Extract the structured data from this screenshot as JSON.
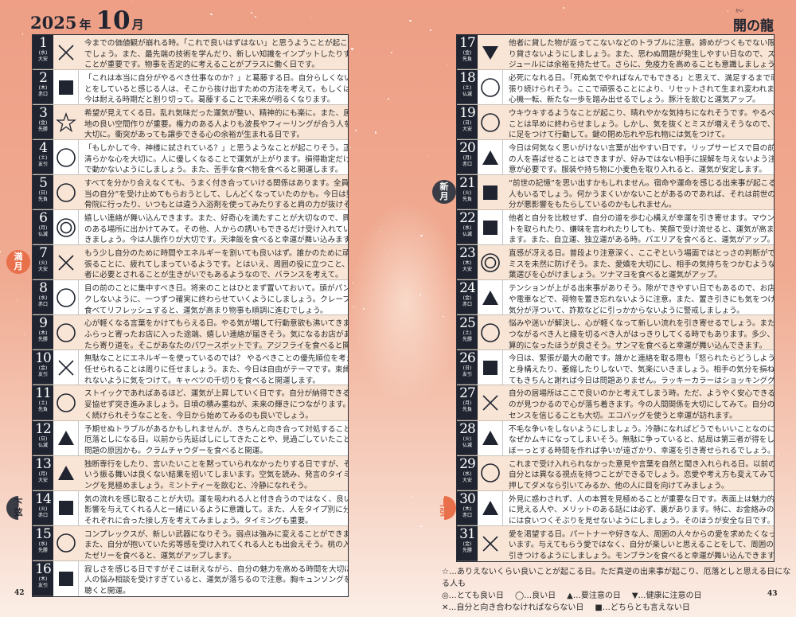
{
  "header": {
    "year": "2025",
    "year_kanji": "年",
    "month": "10",
    "month_kanji": "月",
    "dragon": "開の龍",
    "dragon_ruby": "かい"
  },
  "colors": {
    "day_column": "#1f2430",
    "odd_row": "#f8e5d5",
    "even_row": "#ffffff",
    "full_moon": "#e8704a"
  },
  "moons": [
    {
      "day": 7,
      "label": "満月",
      "icon": "full-moon-icon"
    },
    {
      "day": 14,
      "label": "下弦",
      "icon": "last-quarter-moon-icon"
    },
    {
      "day": 21,
      "label": "新月",
      "icon": "new-moon-icon"
    },
    {
      "day": 30,
      "label": "上弦",
      "icon": "first-quarter-moon-icon"
    }
  ],
  "days": [
    {
      "n": "1",
      "w": "(水)",
      "r": "大安",
      "s": "cross",
      "lines": [
        "今までの価値観が崩れる時。「これで良いはずはない」と思うようことが起こる",
        "でしょう。また、最先端の技術を学んだり、新しい知識をインプットしたりする",
        "ことが重要です。物事を否定的に考えることがプラスに働く日です。"
      ]
    },
    {
      "n": "2",
      "w": "(木)",
      "r": "赤口",
      "s": "square",
      "lines": [
        "「これは本当に自分がやるべき仕事なのか？」と葛藤する日。自分らしくないこ",
        "とをしていると感じる人は、そこから抜け出すための方法を考えて。もしくは、",
        "今は耐える時期だと割り切って。葛藤することで未来が明るくなります。"
      ]
    },
    {
      "n": "3",
      "w": "(金)",
      "r": "先勝",
      "s": "star",
      "lines": [
        "希望が見えてくる日。乱れ気味だった運気が整い、精神的にも楽に。また、居心",
        "地の良い空間作りが重要。権力のある人よりも波長やフィーリングが合う人を",
        "大切に。衝突があっても譲歩できる心の余裕が生まれる日です。"
      ]
    },
    {
      "n": "4",
      "w": "(土)",
      "r": "友引",
      "s": "circle",
      "lines": [
        "「もしかして今、神様に試されている？」と思うようなことが起こりそう。正しい、",
        "清らかな心を大切に。人に優しくなることで運気が上がります。損得勘定だけ",
        "で動かないようにしましょう。また、苦手な食べ物を食べると開運します。"
      ]
    },
    {
      "n": "5",
      "w": "(日)",
      "r": "先負",
      "s": "circle",
      "lines": [
        "すべてを分かり合えなくても、うまく付き合っていける関係はあります。全員に“本",
        "当の自分”を受け止めてもらおうとして、しんどくなっていたのかも。今日は整",
        "骨院に行ったり、いつもとは違う入浴剤を使ってみたりすると肩の力が抜けそう。"
      ]
    },
    {
      "n": "6",
      "w": "(月)",
      "r": "仏滅",
      "s": "double",
      "lines": [
        "嬉しい連絡が舞い込んできます。また、好奇心を満たすことが大切なので、興味",
        "のある場所に出かけてみて。その他、人からの誘いもできるだけ受け入れてい",
        "きましょう。今は人脈作りが大切です。天津飯を食べると幸運が舞い込みます。"
      ]
    },
    {
      "n": "7",
      "w": "(火)",
      "r": "大安",
      "s": "cross",
      "lines": [
        "もう少し自分のために時間やエネルギーを割いても良いはず。誰かのために頑",
        "張ることに、疲れてしまっているようです。とはいえ、周囲の役に立つこと、他",
        "者に必要とされることが生きがいでもあるようなので、バランスを考えて。"
      ]
    },
    {
      "n": "8",
      "w": "(水)",
      "r": "赤口",
      "s": "circle",
      "lines": [
        "目の前のことに集中すべき日。将来のことはひとまず置いておいて。頭がパン",
        "クしないように、一つずつ確実に終わらせていくようにしましょう。クレープを",
        "食べてリフレッシュすると、運気が高まり物事も順調に進むでしょう。"
      ]
    },
    {
      "n": "9",
      "w": "(木)",
      "r": "先勝",
      "s": "circle",
      "lines": [
        "心が軽くなる言葉をかけてもらえる日。やる気が増して行動意欲も沸いてきます。",
        "ふらっと寄ったお店に入った途端、嬉しい連絡が届きそう。気になるお店があっ",
        "たら寄り道を。そこがあなたのパワースポットです。アジフライを食べると開運。"
      ]
    },
    {
      "n": "10",
      "w": "(金)",
      "r": "友引",
      "s": "cross",
      "lines": [
        "無駄なことにエネルギーを使っているのでは？ やるべきことの優先順位を考えて、",
        "任せられることは周りに任せましょう。また、今日は自由がテーマです。束縛さ",
        "れないように気をつけて。キャベツの千切りを食べると開運します。"
      ]
    },
    {
      "n": "11",
      "w": "(土)",
      "r": "先負",
      "s": "circle",
      "lines": [
        "ストイックであればあるほど、運気が上昇していく日です。自分が納得できるまで、",
        "妥協せず突き進みましょう。日頃の積み重ねが、未来の輝きにつながります。長",
        "く続けられそうなことを、今日から始めてみるのも良いでしょう。"
      ]
    },
    {
      "n": "12",
      "w": "(日)",
      "r": "仏滅",
      "s": "triangle",
      "lines": [
        "予期せぬトラブルがあるかもしれませんが、きちんと向き合って対処することで、",
        "厄落としになる日。以前から先延ばしにしてきたことや、見過ごしていたことが",
        "問題の原因かも。クラムチャウダーを食べると開運。"
      ]
    },
    {
      "n": "13",
      "w": "(月)",
      "r": "大安",
      "s": "triangle",
      "lines": [
        "独断専行をしたり、言いたいことを黙っていられなかったりする日ですが、そう",
        "いう振る舞いは良くない結果を招いてしまいます。空気を読み、発言のタイミ",
        "ングを見極めましょう。ミントティーを飲むと、冷静になれそう。"
      ]
    },
    {
      "n": "14",
      "w": "(火)",
      "r": "赤口",
      "s": "square",
      "lines": [
        "気の流れを感じ取ることが大切。運を吸われる人と付き合うのではなく、良い",
        "影響を与えてくれる人と一緒にいるように意識して。また、人をタイプ別に分類し、",
        "それぞれに合った接し方を考えてみましょう。タイミングも重要。"
      ]
    },
    {
      "n": "15",
      "w": "(水)",
      "r": "先勝",
      "s": "circle",
      "lines": [
        "コンプレックスが、新しい武器になりそう。弱点は強みに変えることができます。",
        "また、自分が抱いていた劣等感を受け入れてくれる人とも出会えそう。桃の入っ",
        "たゼリーを食べると、運気がアップします。"
      ]
    },
    {
      "n": "16",
      "w": "(木)",
      "r": "友引",
      "s": "square",
      "lines": [
        "寂しさを感じる日ですがそこは耐えながら、自分の魅力を高める時間を大切に。",
        "人の悩み相談を受けすぎていると、運気が落ちるので注意。胸キュンソングを",
        "聴くと開運。"
      ]
    },
    {
      "n": "17",
      "w": "(金)",
      "r": "先負",
      "s": "down-triangle",
      "lines": [
        "他者に貸した物が返ってこないなどのトラブルに注意。諦めがつくもでない限",
        "り貸さないようにしましょう。また、思わぬ問題が発生しやすい日なので、スケ",
        "ジュールには余裕を持たせて。さらに、免疫力を高めることも意識しましょう。"
      ]
    },
    {
      "n": "18",
      "w": "(土)",
      "r": "仏滅",
      "s": "circle",
      "lines": [
        "必死になれる日。「死ぬ気でやればなんでもできる」と思えて、満足するまで頑",
        "張り続けられそう。ここで頑張ることにより、リセットされて生まれ変われます。",
        "心機一転、新たな一歩を踏み出せるでしょう。豚汁を飲むと運気アップ。"
      ]
    },
    {
      "n": "19",
      "w": "(日)",
      "r": "大安",
      "s": "circle",
      "lines": [
        "ウキウキするようなことが起こり、晴れやかな気持ちになれそうです。やるべき",
        "ことは早めに終わらせましょう。しかし、気を抜くとミスが増えそうなので、地",
        "に足をつけて行動して。鍵の閉め忘れや忘れ物には気をつけて。"
      ]
    },
    {
      "n": "20",
      "w": "(月)",
      "r": "赤口",
      "s": "triangle",
      "lines": [
        "今日は何気なく思いがけない言葉が出やすい日です。リップサービスで目の前",
        "の人を喜ばせることはできますが、好みではない相手に誤解を与えないよう注",
        "意が必要です。服装や持ち物に小麦色を取り入れると、運気が安定します。"
      ]
    },
    {
      "n": "21",
      "w": "(火)",
      "r": "先負",
      "s": "square",
      "lines": [
        "“前世の記憶”を思い出すかもしれません。宿命や運命を感じる出来事が起こる",
        "人もいるでしょう。何かうまくいかないことがあるのであれば、それは前世の自",
        "分が悪影響をもたらしているのかもしれません。"
      ]
    },
    {
      "n": "22",
      "w": "(水)",
      "r": "仏滅",
      "s": "square",
      "lines": [
        "他者と自分を比較せず、自分の道を歩む心構えが幸運を引き寄せます。マウン",
        "トを取られたり、嫌味を言われたりしても、笑顔で受け流せると、運気が高まり",
        "ます。また、自立運、独立運がある時。パエリアを食べると、運気がアップ。"
      ]
    },
    {
      "n": "23",
      "w": "(木)",
      "r": "大安",
      "s": "double",
      "lines": [
        "直感が冴える日。普段より注意深く、ここぞという場面ではとっさの判断ができ、",
        "ミスを未然に防げそう。また、愛嬌を大切にし、相手の気持ちをつかむような言",
        "葉選びを心がけましょう。ツナマヨを食べると運気がアップ。"
      ]
    },
    {
      "n": "24",
      "w": "(金)",
      "r": "赤口",
      "s": "triangle",
      "lines": [
        "テンションが上がる出来事がありそう。隙ができやすい日でもあるので、お店",
        "や電車などで、荷物を置き忘れないように注意。また、置き引きにも気をつけて。",
        "気分が浮ついて、詐欺などに引っかからないように警戒しましょう。"
      ]
    },
    {
      "n": "25",
      "w": "(土)",
      "r": "先勝",
      "s": "circle",
      "lines": [
        "悩みや迷いが解決し、心が軽くなって新しい流れを引き寄せるでしょう。また、",
        "つながるべき人と縁を切るべき人がはっきりしてくる時でもあります。多少、打",
        "算的になったほうが良さそう。サンマを食べると幸運が舞い込んできます。"
      ]
    },
    {
      "n": "26",
      "w": "(日)",
      "r": "友引",
      "s": "square",
      "lines": [
        "今日は、緊張が最大の敵です。誰かと連絡を取る際も「怒られたらどうしよう」など",
        "と身構えたり、萎縮したりしないで、気楽にいきましょう。相手の気分を損ねてしまっ",
        "てもきちんと謝れば今日は問題ありません。ラッキーカラーはショッキンググリーン。"
      ]
    },
    {
      "n": "27",
      "w": "(月)",
      "r": "先負",
      "s": "cross",
      "lines": [
        "自分の居場所はここで良いのかと考えてしまう時。ただ、ようやく安心できるも",
        "のが見つかるので心が落ち着きます。今の人間関係を大切にしてみて。自分の",
        "センスを信じることも大切。エコバッグを使うと幸運が訪れます。"
      ]
    },
    {
      "n": "28",
      "w": "(火)",
      "r": "仏滅",
      "s": "triangle",
      "lines": [
        "不毛な争いをしないようにしましょう。冷静になればどうでもいいことなのに、",
        "なぜかムキになってしまいそう。無駄に争っていると、結局は第三者が得をします。",
        "ぼーっとする時間を作れば争いが遠ざかり、幸運を引き寄せられるでしょう。"
      ]
    },
    {
      "n": "29",
      "w": "(水)",
      "r": "大安",
      "s": "circle",
      "lines": [
        "これまで受け入れられなかった意見や言葉を自然と聞き入れられる日。以前の",
        "自分とは異なる視点を持つことができるでしょう。恋愛や考え方も変えてみて。",
        "押してダメなら引いてみるか、他の人に目を向けてみましょう。"
      ]
    },
    {
      "n": "30",
      "w": "(木)",
      "r": "赤口",
      "s": "triangle",
      "lines": [
        "外見に惑わされず、人の本質を見極めることが重要な日です。表面上は魅力的",
        "に見える人や、メリットのある話には必ず、裏があります。特に、お金絡みの話",
        "には食いつくそぶりを見せないようにしましょう。そのほうが安全な日です。"
      ]
    },
    {
      "n": "31",
      "w": "(金)",
      "r": "先勝",
      "s": "cross",
      "lines": [
        "愛を渇望する日。パートナーや好きな人、周囲の人々からの愛を求めたくなって",
        "います。与えてもらう愛ではなく、自分が楽しいと思えることをして、周囲の人を",
        "引きつけるようにしましょう。モンブランを食べると幸運が舞い込んできます。"
      ]
    }
  ],
  "legend": {
    "star": "☆…ありえないくらい良いことが起こる日。ただ真逆の出来事が起こり、厄落としと思える日になる人も",
    "double": "◎…とても良い日",
    "circle": "◯…良い日",
    "triangle": "▲…要注意の日",
    "down_triangle": "▼…健康に注意の日",
    "cross": "✕…自分と向き合わなければならない日",
    "square": "■…どちらとも言えない日"
  },
  "page_numbers": {
    "left": "42",
    "right": "43"
  }
}
